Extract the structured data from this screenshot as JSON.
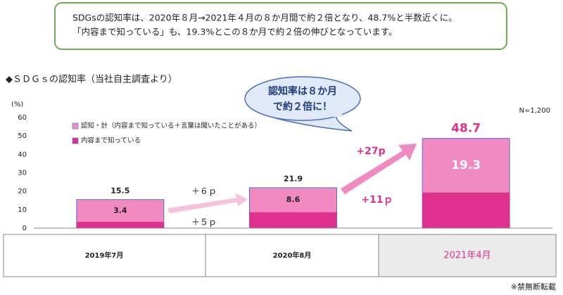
{
  "header": {
    "lines": [
      "SDGsの認知率は、2020年８月→2021年４月の８か月間で約２倍となり、48.7%と半数近くに。",
      "「内容まで知っている」も、19.3%とこの８か月で約２倍の伸びとなっています。"
    ]
  },
  "chart_data": {
    "type": "bar",
    "title": "◆ＳＤＧｓの認知率（当社自主調査より）",
    "y_label": "(%)",
    "note": "N=1,200",
    "categories": [
      "2019年7月",
      "2020年8月",
      "2021年4月"
    ],
    "series": [
      {
        "name": "認知・計（内容まで知っている＋言葉は聞いたことがある）",
        "color": "#f08ac0",
        "values": [
          15.5,
          21.9,
          48.7
        ]
      },
      {
        "name": "内容まで知っている",
        "color": "#e0308f",
        "values": [
          3.4,
          8.6,
          19.3
        ]
      }
    ],
    "ylim": [
      0,
      60
    ],
    "yticks": [
      0,
      10,
      20,
      30,
      40,
      50,
      60
    ],
    "grid": false,
    "callout": [
      "認知率は８か月",
      "で約２倍に！"
    ],
    "annotations": [
      "＋６ｐ",
      "＋５ｐ",
      "+27p",
      "+11ｐ"
    ]
  },
  "footnote": "※禁無断転載"
}
